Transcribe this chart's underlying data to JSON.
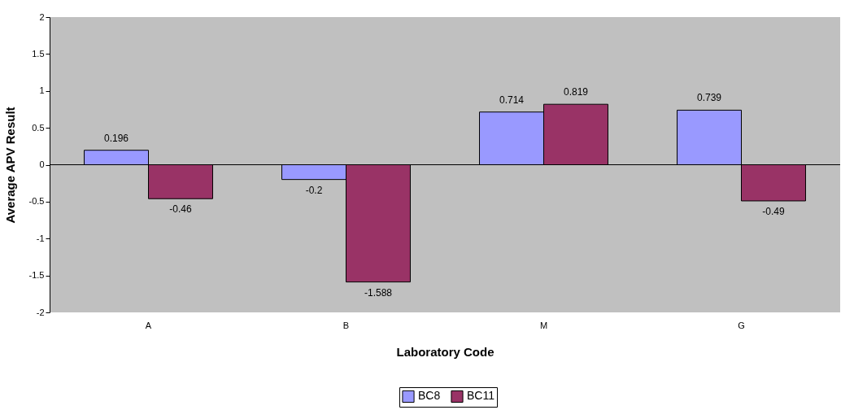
{
  "chart_data": {
    "type": "bar",
    "xlabel": "Laboratory Code",
    "ylabel": "Average APV Result",
    "categories": [
      "A",
      "B",
      "M",
      "G"
    ],
    "series": [
      {
        "name": "BC8",
        "color": "#9999ff",
        "values": [
          0.196,
          -0.2,
          0.714,
          0.739
        ]
      },
      {
        "name": "BC11",
        "color": "#993366",
        "values": [
          -0.46,
          -1.588,
          0.819,
          -0.49
        ]
      }
    ],
    "ylim": [
      -2,
      2
    ],
    "yticks": [
      -2,
      -1.5,
      -1,
      -0.5,
      0,
      0.5,
      1,
      1.5,
      2
    ],
    "data_labels": true,
    "legend": "bottom"
  }
}
